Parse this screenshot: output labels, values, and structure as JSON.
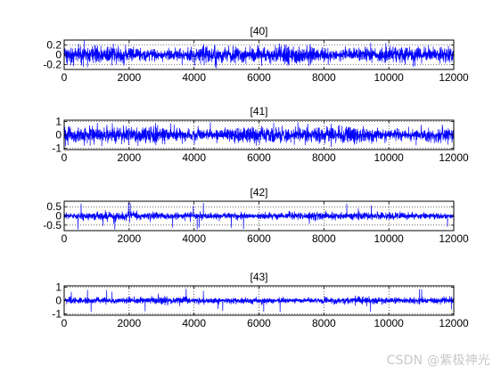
{
  "chart_data": [
    {
      "type": "line",
      "title": "[40]",
      "xlim": [
        0,
        12000
      ],
      "ylim": [
        -0.3,
        0.3
      ],
      "xticks": [
        "0",
        "2000",
        "4000",
        "6000",
        "8000",
        "10000",
        "12000"
      ],
      "yticks": [
        "0.2",
        "0",
        "-0.2"
      ],
      "grid": true,
      "series": [
        {
          "color": "#0000ff",
          "n_samples": 12000,
          "amplitude": 0.2,
          "peak": 0.3
        }
      ]
    },
    {
      "type": "line",
      "title": "[41]",
      "xlim": [
        0,
        12000
      ],
      "ylim": [
        -1.1,
        1.1
      ],
      "xticks": [
        "0",
        "2000",
        "4000",
        "6000",
        "8000",
        "10000",
        "12000"
      ],
      "yticks": [
        "1",
        "0",
        "-1"
      ],
      "grid": true,
      "series": [
        {
          "color": "#0000ff",
          "n_samples": 12000,
          "amplitude": 0.7,
          "peak": 0.95
        }
      ]
    },
    {
      "type": "line",
      "title": "[42]",
      "xlim": [
        0,
        12000
      ],
      "ylim": [
        -0.8,
        0.8
      ],
      "xticks": [
        "0",
        "2000",
        "4000",
        "6000",
        "8000",
        "10000",
        "12000"
      ],
      "yticks": [
        "0.5",
        "0",
        "-0.5"
      ],
      "grid": true,
      "series": [
        {
          "color": "#0000ff",
          "n_samples": 12000,
          "amplitude": 0.25,
          "peak": 0.75
        }
      ]
    },
    {
      "type": "line",
      "title": "[43]",
      "xlim": [
        0,
        12000
      ],
      "ylim": [
        -1.1,
        1.1
      ],
      "xticks": [
        "0",
        "2000",
        "4000",
        "6000",
        "8000",
        "10000",
        "12000"
      ],
      "yticks": [
        "1",
        "0",
        "-1"
      ],
      "grid": true,
      "series": [
        {
          "color": "#0000ff",
          "n_samples": 12000,
          "amplitude": 0.3,
          "peak": 0.9
        }
      ]
    }
  ],
  "watermark": "CSDN @紫极神光"
}
